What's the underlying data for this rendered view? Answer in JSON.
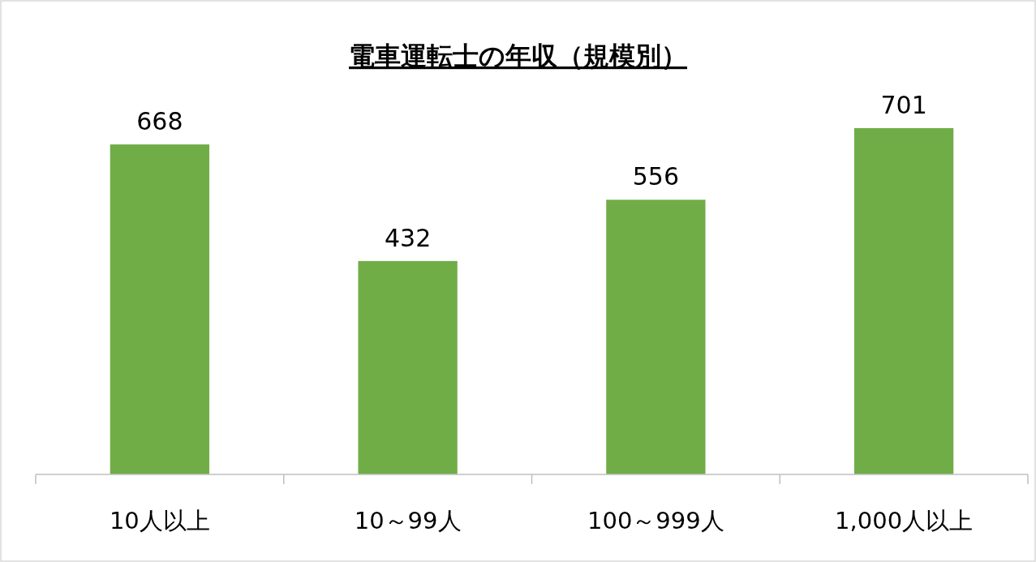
{
  "chart_data": {
    "type": "bar",
    "title": "電車運転士の年収（規模別）",
    "categories": [
      "10人以上",
      "10～99人",
      "100～999人",
      "1,000人以上"
    ],
    "values": [
      668,
      432,
      556,
      701
    ],
    "color": "#70ad47",
    "data_labels": true
  }
}
